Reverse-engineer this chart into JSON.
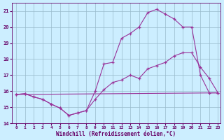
{
  "xlabel": "Windchill (Refroidissement éolien,°C)",
  "bg_color": "#cceeff",
  "line_color": "#993399",
  "grid_color": "#99bbcc",
  "xlim": [
    -0.5,
    23.3
  ],
  "ylim": [
    14,
    21.5
  ],
  "yticks": [
    14,
    15,
    16,
    17,
    18,
    19,
    20,
    21
  ],
  "xticks": [
    0,
    1,
    2,
    3,
    4,
    5,
    6,
    7,
    8,
    9,
    10,
    11,
    12,
    13,
    14,
    15,
    16,
    17,
    18,
    19,
    20,
    21,
    22,
    23
  ],
  "series1_x": [
    0,
    1,
    2,
    3,
    4,
    5,
    6,
    7,
    8,
    9,
    10,
    11,
    12,
    13,
    14,
    15,
    16,
    17,
    18,
    19,
    20,
    21,
    22,
    23
  ],
  "series1_y": [
    15.8,
    15.85,
    15.65,
    15.5,
    15.2,
    14.95,
    14.5,
    14.65,
    14.8,
    15.5,
    16.1,
    16.55,
    16.7,
    17.0,
    16.8,
    17.4,
    17.6,
    17.8,
    18.2,
    18.4,
    18.4,
    17.5,
    16.8,
    15.9
  ],
  "series2_x": [
    0,
    1,
    2,
    3,
    4,
    5,
    6,
    7,
    8,
    9,
    10,
    11,
    12,
    13,
    14,
    15,
    16,
    17,
    18,
    19,
    20,
    21,
    22,
    23
  ],
  "series2_y": [
    15.8,
    15.85,
    15.65,
    15.5,
    15.2,
    14.95,
    14.5,
    14.65,
    14.8,
    16.0,
    17.7,
    17.8,
    19.3,
    19.6,
    20.0,
    20.9,
    21.1,
    20.8,
    20.5,
    20.0,
    20.0,
    17.0,
    15.9,
    15.9
  ],
  "series3_x": [
    0,
    23
  ],
  "series3_y": [
    15.8,
    15.9
  ]
}
